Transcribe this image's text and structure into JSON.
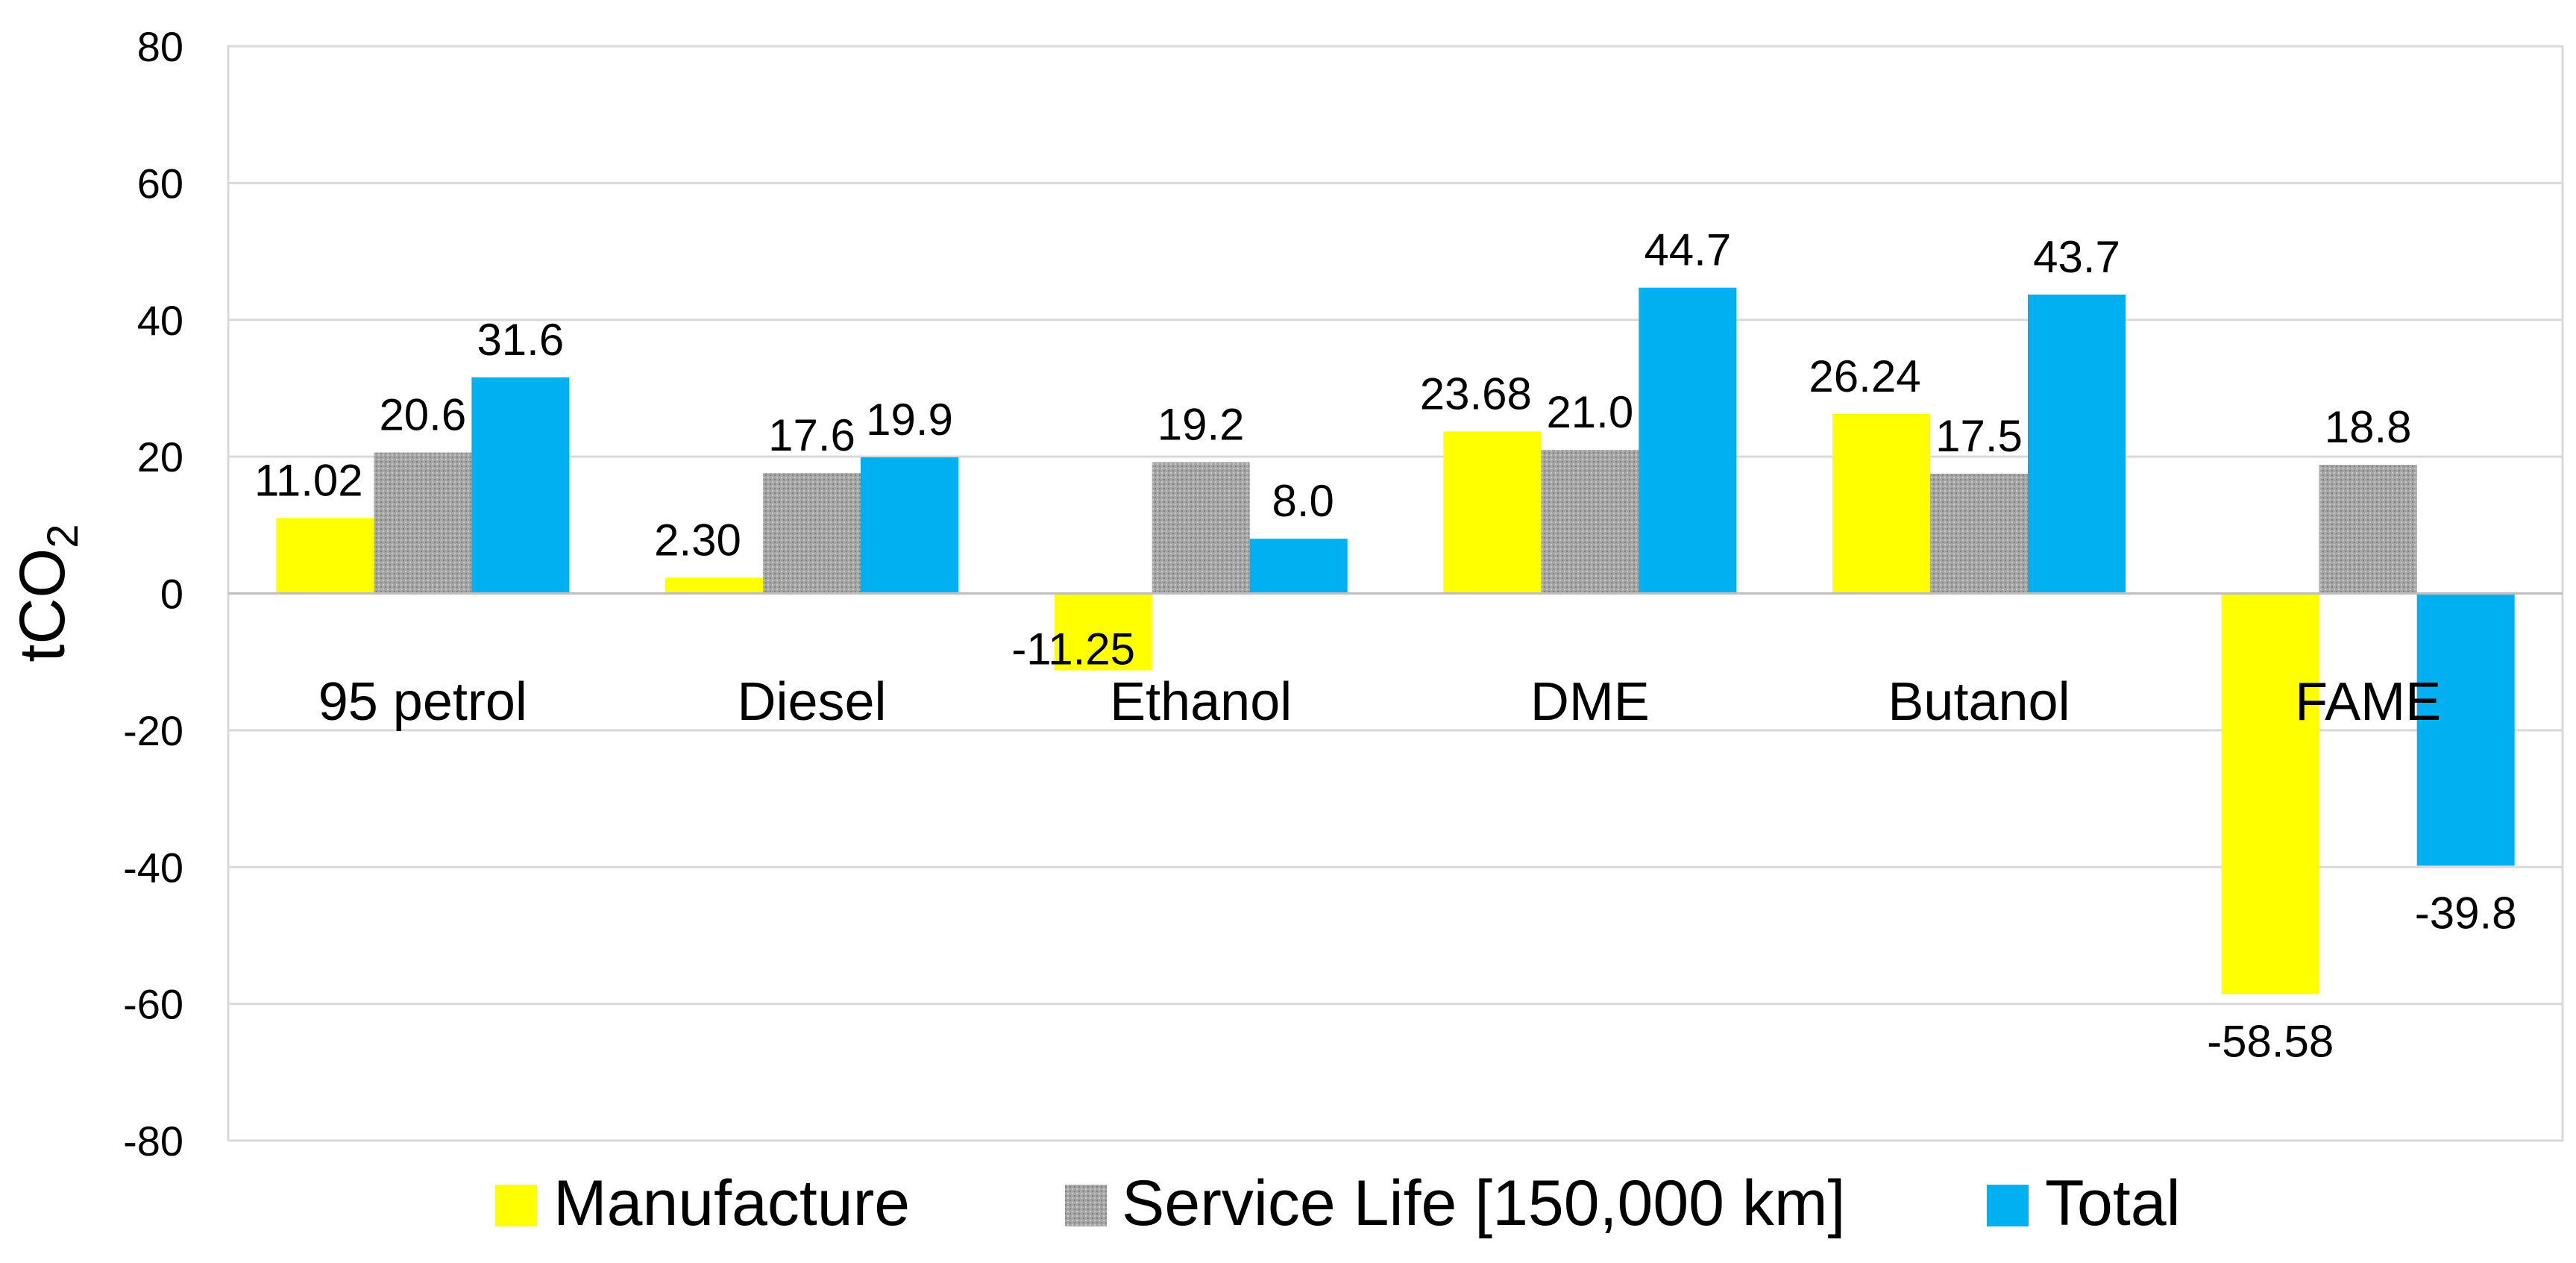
{
  "chart_data": {
    "type": "bar",
    "title": "",
    "xlabel": "",
    "ylabel": "tCO",
    "ylabel_subscript": "2",
    "ylim": [
      -80,
      80
    ],
    "yticks": [
      80,
      60,
      40,
      20,
      0,
      -20,
      -40,
      -60,
      -80
    ],
    "grid": true,
    "legend_position": "bottom",
    "categories": [
      "95 petrol",
      "Diesel",
      "Ethanol",
      "DME",
      "Butanol",
      "FAME"
    ],
    "series": [
      {
        "name": "Manufacture",
        "color": "#FFFF00",
        "pattern": "solid",
        "values": [
          11.02,
          2.3,
          -11.25,
          23.68,
          26.24,
          -58.58
        ],
        "labels": [
          "11.02",
          "2.30",
          "-11.25",
          "23.68",
          "26.24",
          "-58.58"
        ]
      },
      {
        "name": "Service Life [150,000 km]",
        "color": "#A6A6A6",
        "pattern": "dotted",
        "values": [
          20.6,
          17.6,
          19.2,
          21.0,
          17.5,
          18.8
        ],
        "labels": [
          "20.6",
          "17.6",
          "19.2",
          "21.0",
          "17.5",
          "18.8"
        ]
      },
      {
        "name": "Total",
        "color": "#00B0F0",
        "pattern": "solid",
        "values": [
          31.6,
          19.9,
          8.0,
          44.7,
          43.7,
          -39.8
        ],
        "labels": [
          "31.6",
          "19.9",
          "8.0",
          "44.7",
          "43.7",
          "-39.8"
        ]
      }
    ]
  }
}
